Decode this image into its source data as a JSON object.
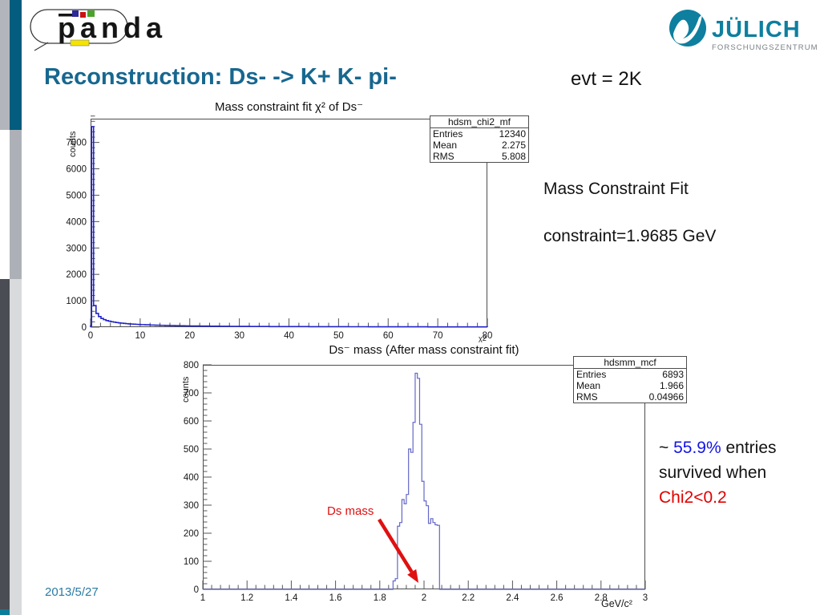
{
  "slide": {
    "title": "Reconstruction: Ds- -> K+ K- pi-",
    "title_color": "#17678f",
    "evt_label": "evt = 2K",
    "date": "2013/5/27",
    "date_color": "#2a7ba3"
  },
  "header": {
    "panda_logo_text": "panda",
    "julich_logo_text": "JÜLICH",
    "julich_logo_subtext": "FORSCHUNGSZENTRUM",
    "julich_teal": "#0e7f9f",
    "julich_subtext_gray": "#7a8084",
    "panda_square_blue": "#2a2a99",
    "panda_square_red": "#cc1111",
    "panda_square_green": "#4aa32a",
    "panda_bar_yellow": "#f5e400"
  },
  "annotations": {
    "mass_fit_line1": "Mass Constraint Fit",
    "mass_fit_line2": "constraint=1.9685 GeV",
    "survival": {
      "prefix": "~ ",
      "percent": "55.9%",
      "percent_color": "#1414e6",
      "line1_rest": " entries",
      "line2": "survived when",
      "condition": "Chi2<0.2",
      "condition_color": "#e00000"
    }
  },
  "chart_data": [
    {
      "type": "histogram-line",
      "title": "Mass constraint fit  χ² of Ds⁻",
      "ylabel": "counts",
      "xlabel": "χ2",
      "stats_box": {
        "name": "hdsm_chi2_mf",
        "entries_label": "Entries",
        "entries": "12340",
        "mean_label": "Mean",
        "mean": "2.275",
        "rms_label": "RMS",
        "rms": "5.808"
      },
      "xlim": [
        0,
        80
      ],
      "ylim": [
        0,
        7900
      ],
      "xticks": [
        0,
        10,
        20,
        30,
        40,
        50,
        60,
        70,
        80
      ],
      "xtick_labels": [
        "0",
        "10",
        "20",
        "30",
        "40",
        "50",
        "60",
        "70",
        "80"
      ],
      "x_minor": 2,
      "yticks": [
        0,
        1000,
        2000,
        3000,
        4000,
        5000,
        6000,
        7000
      ],
      "ytick_labels": [
        "0",
        "1000",
        "2000",
        "3000",
        "4000",
        "5000",
        "6000",
        "7000"
      ],
      "y_minor": 200,
      "line_color": "#2323cc",
      "line_width": 1.6,
      "x_end": 80,
      "bins": [
        [
          0,
          50
        ],
        [
          0.2,
          7600
        ],
        [
          0.6,
          820
        ],
        [
          1.1,
          520
        ],
        [
          1.6,
          400
        ],
        [
          2.1,
          330
        ],
        [
          2.6,
          285
        ],
        [
          3.1,
          250
        ],
        [
          3.6,
          225
        ],
        [
          4.1,
          205
        ],
        [
          4.6,
          190
        ],
        [
          5.1,
          175
        ],
        [
          5.6,
          163
        ],
        [
          6.1,
          152
        ],
        [
          6.6,
          142
        ],
        [
          7.1,
          133
        ],
        [
          7.6,
          125
        ],
        [
          8.1,
          118
        ],
        [
          8.6,
          112
        ],
        [
          9.1,
          106
        ],
        [
          9.6,
          100
        ],
        [
          10.1,
          95
        ],
        [
          11,
          88
        ],
        [
          12,
          80
        ],
        [
          13,
          74
        ],
        [
          14,
          68
        ],
        [
          15,
          63
        ],
        [
          16,
          58
        ],
        [
          17,
          54
        ],
        [
          18,
          50
        ],
        [
          19,
          47
        ],
        [
          20,
          44
        ],
        [
          22,
          40
        ],
        [
          24,
          36
        ],
        [
          26,
          33
        ],
        [
          28,
          30
        ],
        [
          30,
          28
        ],
        [
          32,
          26
        ],
        [
          34,
          24
        ],
        [
          36,
          22
        ],
        [
          38,
          21
        ],
        [
          40,
          20
        ],
        [
          44,
          18
        ],
        [
          48,
          16
        ],
        [
          52,
          15
        ],
        [
          56,
          14
        ],
        [
          60,
          13
        ],
        [
          64,
          12
        ],
        [
          68,
          11
        ],
        [
          72,
          10
        ],
        [
          76,
          10
        ]
      ]
    },
    {
      "type": "histogram-line",
      "title": "Ds⁻ mass (After mass constraint fit)",
      "ylabel": "counts",
      "xlabel": "GeV/c²",
      "stats_box": {
        "name": "hdsmm_mcf",
        "entries_label": "Entries",
        "entries": "6893",
        "mean_label": "Mean",
        "mean": "1.966",
        "rms_label": "RMS",
        "rms": "0.04966"
      },
      "xlim": [
        1,
        3
      ],
      "ylim": [
        0,
        800
      ],
      "xticks": [
        1,
        1.2,
        1.4,
        1.6,
        1.8,
        2,
        2.2,
        2.4,
        2.6,
        2.8,
        3
      ],
      "xtick_labels": [
        "1",
        "1.2",
        "1.4",
        "1.6",
        "1.8",
        "2",
        "2.2",
        "2.4",
        "2.6",
        "2.8",
        "3"
      ],
      "x_minor": 0.04,
      "yticks": [
        0,
        100,
        200,
        300,
        400,
        500,
        600,
        700,
        800
      ],
      "ytick_labels": [
        "0",
        "100",
        "200",
        "300",
        "400",
        "500",
        "600",
        "700",
        "800"
      ],
      "y_minor": 20,
      "line_color": "#6467c8",
      "line_width": 1.2,
      "x_end": 2.07,
      "bins": [
        [
          1.86,
          30
        ],
        [
          1.87,
          38
        ],
        [
          1.88,
          225
        ],
        [
          1.89,
          238
        ],
        [
          1.9,
          320
        ],
        [
          1.91,
          305
        ],
        [
          1.92,
          338
        ],
        [
          1.93,
          500
        ],
        [
          1.94,
          488
        ],
        [
          1.95,
          595
        ],
        [
          1.96,
          770
        ],
        [
          1.97,
          752
        ],
        [
          1.98,
          588
        ],
        [
          1.99,
          385
        ],
        [
          2,
          315
        ],
        [
          2.01,
          298
        ],
        [
          2.02,
          235
        ],
        [
          2.03,
          252
        ],
        [
          2.04,
          238
        ],
        [
          2.05,
          230
        ],
        [
          2.06,
          228
        ]
      ],
      "annotation": {
        "label": "Ds mass",
        "color": "#e01010",
        "arrow": {
          "from": [
            1.797,
            249
          ],
          "to": [
            1.975,
            23
          ]
        }
      }
    }
  ]
}
